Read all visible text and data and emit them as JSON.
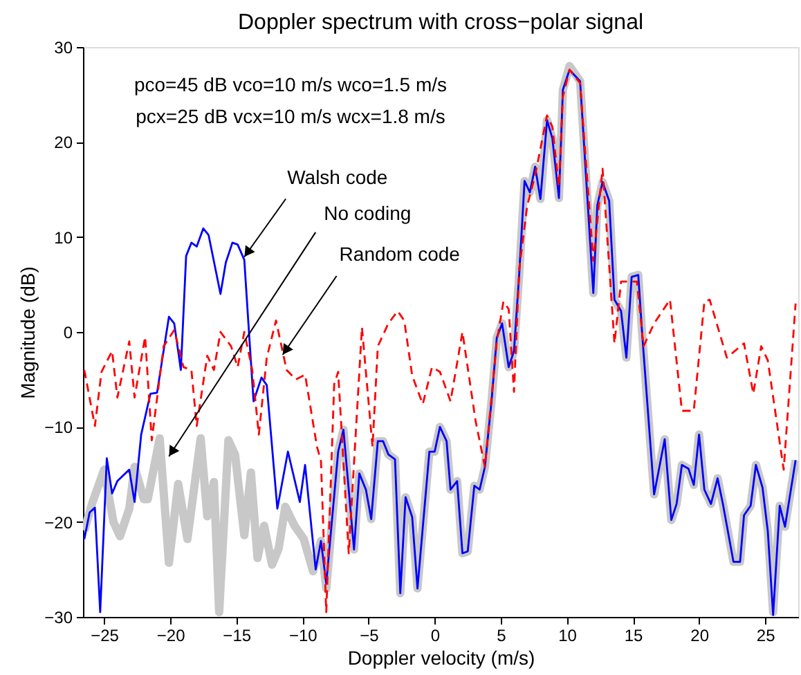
{
  "chart_data": {
    "type": "line",
    "title": "Doppler spectrum with cross−polar signal",
    "xlabel": "Doppler velocity (m/s)",
    "ylabel": "Magnitude (dB)",
    "xlim": [
      -26.6,
      27.5
    ],
    "ylim": [
      -30,
      30
    ],
    "xticks": [
      -25,
      -20,
      -15,
      -10,
      -5,
      0,
      5,
      10,
      15,
      20,
      25
    ],
    "yticks": [
      -30,
      -20,
      -10,
      0,
      10,
      20,
      30
    ],
    "grid": false,
    "series": [
      {
        "color": "#c8c8c8",
        "line_style": "solid",
        "x": [
          -26.5,
          -25.9,
          -25,
          -24.3,
          -23.8,
          -23.1,
          -22.7,
          -22.0,
          -21.7,
          -20.8,
          -20.1,
          -19.4,
          -18.7,
          -18.2,
          -17.7,
          -17.2,
          -16.7,
          -16.3,
          -15.6,
          -15.1,
          -14.4,
          -13.9,
          -13.4,
          -12.9,
          -12.3,
          -11.8,
          -11.3,
          -10.6,
          -9.9,
          -9.2,
          -8.6,
          -8.2,
          -7.3,
          -6.9,
          -6.1,
          -5.7,
          -5.2,
          -4.8,
          -4.3,
          -3.9,
          -3.5,
          -3.0,
          -2.6,
          -2.2,
          -1.7,
          -1.3,
          -0.4,
          0.0,
          0.4,
          0.9,
          1.2,
          1.7,
          2.1,
          2.5,
          3.0,
          3.4,
          3.8,
          4.3,
          4.7,
          5.1,
          5.6,
          6.0,
          6.4,
          6.8,
          7.2,
          7.6,
          8.0,
          8.5,
          8.9,
          9.4,
          9.7,
          10.2,
          11.0,
          12.0,
          12.3,
          12.7,
          13.2,
          13.6,
          14.1,
          14.5,
          14.9,
          15.4,
          15.7,
          16.6,
          17.4,
          17.9,
          18.3,
          18.7,
          19.2,
          19.6,
          20.0,
          20.4,
          20.9,
          21.4,
          21.8,
          22.6,
          23.1,
          23.4,
          23.9,
          24.3,
          24.8,
          25.2,
          25.6,
          26.1,
          26.5,
          27.3
        ],
        "values": [
          -20.9,
          -18,
          -14.5,
          -20,
          -21.5,
          -18.6,
          -14.2,
          -17.6,
          -17.6,
          -11.2,
          -24.3,
          -16,
          -21.8,
          -16.5,
          -11.2,
          -19.4,
          -15.8,
          -29.5,
          -11.4,
          -12.9,
          -21.4,
          -14.8,
          -23.8,
          -20.4,
          -24.5,
          -22.8,
          -18.4,
          -20.4,
          -21.8,
          -25.2,
          -22,
          -27,
          -12.6,
          -10.3,
          -22.9,
          -14.9,
          -16.6,
          -19.7,
          -11.5,
          -11.5,
          -12.9,
          -13.4,
          -27.5,
          -17.4,
          -19.5,
          -27,
          -12.6,
          -12.6,
          -10,
          -11.5,
          -16.6,
          -15.7,
          -23.3,
          -23.1,
          -16.2,
          -16.6,
          -14.2,
          -7.3,
          -0.6,
          0.9,
          -3.7,
          -2,
          6.2,
          15.9,
          14.7,
          17.4,
          14,
          22.3,
          20.4,
          14.1,
          25.5,
          28,
          26.4,
          4.1,
          13.3,
          15.8,
          13.8,
          3.4,
          2.2,
          -2.7,
          5.8,
          6,
          -0.3,
          -17.1,
          -11.3,
          -19.8,
          -18.1,
          -14,
          -14.4,
          -16.1,
          -10.8,
          -16.6,
          -18.1,
          -15.4,
          -18.1,
          -24.2,
          -24.2,
          -19.3,
          -18.3,
          -14,
          -16.4,
          -21,
          -29.5,
          -18.3,
          -20.5,
          -13.5
        ]
      },
      {
        "color": "#0000ff",
        "line_style": "solid",
        "x": [
          -26.5,
          -26.1,
          -25.7,
          -25.3,
          -24.8,
          -24.4,
          -24.0,
          -23.1,
          -22.7,
          -22.2,
          -21.5,
          -21.0,
          -20.1,
          -19.7,
          -19.2,
          -18.8,
          -18.4,
          -18.0,
          -17.5,
          -17.1,
          -16.2,
          -15.8,
          -15.3,
          -14.9,
          -14.4,
          -14.0,
          -13.7,
          -13.1,
          -12.7,
          -11.9,
          -11.1,
          -10.2,
          -9.8,
          -9.0,
          -8.6,
          -8.2,
          -7.3,
          -6.9,
          -6.1,
          -5.7,
          -5.2,
          -4.8,
          -4.3,
          -3.9,
          -3.5,
          -3.0,
          -2.6,
          -2.2,
          -1.7,
          -1.3,
          -0.4,
          0.0,
          0.4,
          0.9,
          1.2,
          1.7,
          2.1,
          2.5,
          3.0,
          3.4,
          3.8,
          4.3,
          4.7,
          5.1,
          5.6,
          6.0,
          6.4,
          6.8,
          7.2,
          7.6,
          8.0,
          8.5,
          8.9,
          9.4,
          9.7,
          10.2,
          11.0,
          12.0,
          12.3,
          12.7,
          13.2,
          13.6,
          14.1,
          14.5,
          14.9,
          15.4,
          15.7,
          16.6,
          17.4,
          17.9,
          18.3,
          18.7,
          19.2,
          19.6,
          20.0,
          20.4,
          20.9,
          21.4,
          21.8,
          22.6,
          23.1,
          23.4,
          23.9,
          24.3,
          24.8,
          25.2,
          25.6,
          26.1,
          26.5,
          27.3
        ],
        "values": [
          -21.8,
          -19,
          -18.5,
          -29.5,
          -13.3,
          -17,
          -15.7,
          -14.5,
          -17.9,
          -10.8,
          -6.5,
          -6.4,
          1.6,
          0.9,
          -4,
          8,
          9.4,
          9,
          10.9,
          10.2,
          4,
          7.3,
          9.4,
          9.2,
          7.6,
          -1,
          -7.3,
          -4.8,
          -5.6,
          -18.6,
          -12.6,
          -17.9,
          -14,
          -25,
          -22,
          -26.5,
          -12.6,
          -10.3,
          -22.9,
          -14.9,
          -16.6,
          -19.7,
          -11.5,
          -11.5,
          -12.9,
          -13.4,
          -27.5,
          -17.4,
          -19.5,
          -27,
          -12.6,
          -12.6,
          -10,
          -11.5,
          -16.6,
          -15.7,
          -23.3,
          -23.1,
          -16.2,
          -16.6,
          -14.2,
          -7.3,
          -0.6,
          0.9,
          -3.7,
          -2,
          6.2,
          15.9,
          14.7,
          17.4,
          14,
          22.3,
          20.4,
          14.1,
          25.5,
          27.6,
          26.4,
          4.1,
          13.3,
          15.8,
          13.8,
          3.4,
          2.2,
          -2.7,
          5.8,
          6,
          -0.3,
          -17.1,
          -11.3,
          -19.8,
          -18.1,
          -14,
          -14.4,
          -16.1,
          -10.8,
          -16.6,
          -18.1,
          -15.4,
          -18.1,
          -24.2,
          -24.2,
          -19.3,
          -18.3,
          -14,
          -16.4,
          -21,
          -29.8,
          -18.3,
          -20.5,
          -13.5
        ]
      },
      {
        "color": "#ff0000",
        "line_style": "dashed",
        "x": [
          -26.5,
          -25.7,
          -25.2,
          -24.4,
          -24.0,
          -23.1,
          -22.7,
          -21.9,
          -21.4,
          -20.5,
          -19.7,
          -19.0,
          -18.4,
          -18.0,
          -17.2,
          -16.7,
          -16.2,
          -15.4,
          -14.9,
          -14.4,
          -13.8,
          -13.3,
          -12.7,
          -12.0,
          -11.2,
          -10.5,
          -9.8,
          -8.9,
          -8.6,
          -8.2,
          -7.6,
          -7.3,
          -6.5,
          -5.5,
          -4.7,
          -4.3,
          -3.5,
          -2.8,
          -2.3,
          -1.7,
          -0.9,
          -0.2,
          0.4,
          1.2,
          2.1,
          3.1,
          3.8,
          4.7,
          5.2,
          5.6,
          6.0,
          6.4,
          7.0,
          7.6,
          8.5,
          8.9,
          9.4,
          9.7,
          10.2,
          11.0,
          12.0,
          12.7,
          13.6,
          14.1,
          15.3,
          15.8,
          16.6,
          17.8,
          18.7,
          19.6,
          20.4,
          20.8,
          22.1,
          23.4,
          24.1,
          24.7,
          25.2,
          26.4,
          27.3
        ],
        "values": [
          -4,
          -9.9,
          -4.2,
          -2,
          -6.9,
          -1,
          -6.9,
          -0.5,
          -11.4,
          -1.5,
          0.2,
          -3.7,
          -4,
          -9.9,
          -2.5,
          -4,
          0,
          -1.5,
          -3.7,
          0,
          -4,
          -10.8,
          -2.7,
          1.2,
          -4,
          -5,
          -4.5,
          -12.1,
          -13.6,
          -29.5,
          -5.5,
          -4.2,
          -23.3,
          0.5,
          -12.1,
          -1.5,
          0.9,
          2.2,
          1.2,
          -4.6,
          -7.6,
          -3.7,
          -4.2,
          -7.3,
          0,
          -9.4,
          -14.2,
          -1,
          3.2,
          2.4,
          -6.3,
          6.7,
          13.3,
          16.5,
          22.8,
          21.6,
          15.3,
          24.8,
          27.6,
          26.2,
          7.5,
          17.2,
          -1.2,
          5.3,
          5.3,
          -1.5,
          0.9,
          3.4,
          -8.3,
          -8.3,
          3.2,
          3.4,
          -2.7,
          -1.2,
          -6.5,
          -1.5,
          -3,
          -14.5,
          3
        ]
      }
    ],
    "annotations": [
      "pco=45 dB vco=10 m/s wco=1.5 m/s",
      "pcx=25 dB vcx=10 m/s wcx=1.8 m/s",
      {
        "text": "Walsh code",
        "x": -14.4,
        "y": 7.9
      },
      {
        "text": "No coding",
        "x": -20.1,
        "y": -13.1
      },
      {
        "text": "Random code",
        "x": -11.5,
        "y": -2.4
      }
    ]
  }
}
